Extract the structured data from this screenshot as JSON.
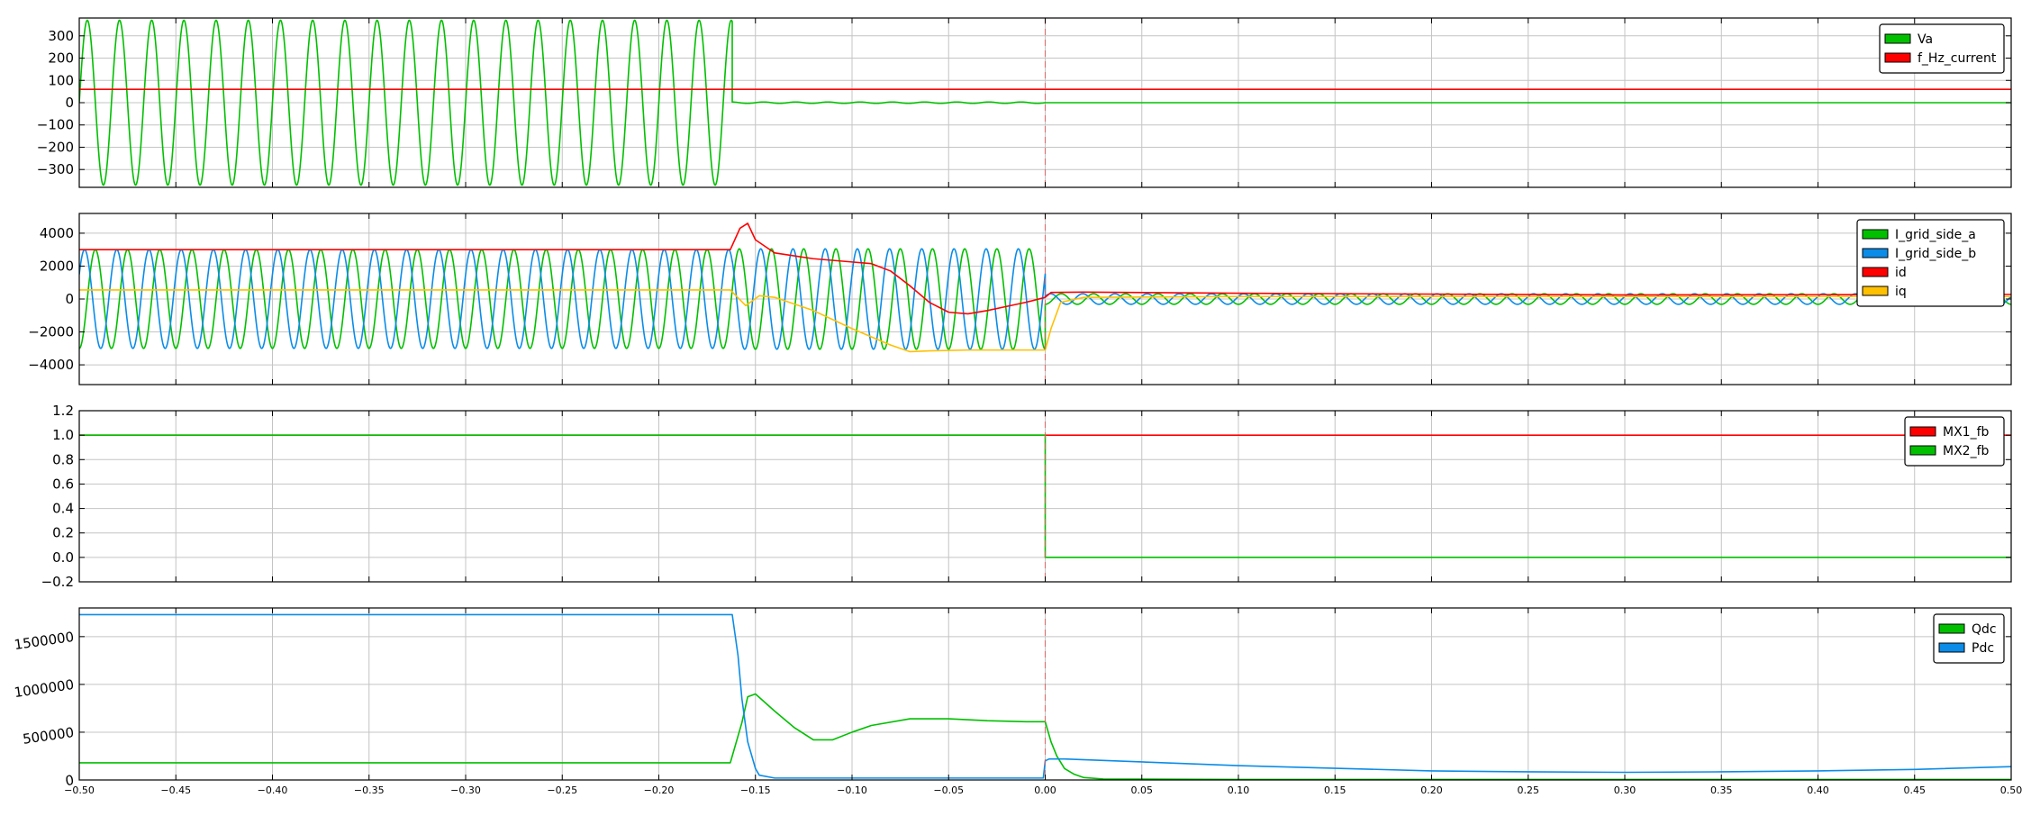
{
  "chart_data": {
    "type": "line",
    "x_axis": {
      "range": [
        -0.5,
        0.5
      ],
      "ticks": [
        -0.5,
        -0.45,
        -0.4,
        -0.35,
        -0.3,
        -0.25,
        -0.2,
        -0.15,
        -0.1,
        -0.05,
        0.0,
        0.05,
        0.1,
        0.15,
        0.2,
        0.25,
        0.3,
        0.35,
        0.4,
        0.45,
        0.5
      ],
      "tick_labels": [
        "−0.50",
        "−0.45",
        "−0.40",
        "−0.35",
        "−0.30",
        "−0.25",
        "−0.20",
        "−0.15",
        "−0.10",
        "−0.05",
        "0.00",
        "0.05",
        "0.10",
        "0.15",
        "0.20",
        "0.25",
        "0.30",
        "0.35",
        "0.40",
        "0.45",
        "0.50"
      ]
    },
    "event_line_x": 0.0,
    "grid": true,
    "legend_placement": "top-right",
    "subplots": [
      {
        "ylim": [
          -380,
          380
        ],
        "yticks": [
          300,
          200,
          100,
          0,
          -100,
          -200,
          -300
        ],
        "ytick_labels": [
          "300",
          "200",
          "100",
          "0",
          "−100",
          "−200",
          "−300"
        ],
        "series": [
          {
            "name": "Va",
            "color": "#00c000",
            "shape": "sine",
            "segments": [
              {
                "x0": -0.5,
                "x1": -0.162,
                "amp": 370,
                "freq": 60,
                "offset": 0
              },
              {
                "x0": -0.162,
                "x1": 0.0,
                "amp": 3,
                "freq": 60,
                "offset": 0
              },
              {
                "x0": 0.0,
                "x1": 0.5,
                "amp": 0,
                "freq": 60,
                "offset": 0
              }
            ]
          },
          {
            "name": "f_Hz_current",
            "color": "#ff0000",
            "shape": "points",
            "x": [
              -0.5,
              0.5
            ],
            "y": [
              60,
              60
            ]
          }
        ]
      },
      {
        "ylim": [
          -5200,
          5200
        ],
        "yticks": [
          4000,
          2000,
          0,
          -2000,
          -4000
        ],
        "ytick_labels": [
          "4000",
          "2000",
          "0",
          "−2000",
          "−4000"
        ],
        "series": [
          {
            "name": "I_grid_side_a",
            "color": "#00c000",
            "shape": "sine",
            "segments": [
              {
                "x0": -0.5,
                "x1": -0.162,
                "amp": 3000,
                "freq": 60,
                "phase": -1.5708
              },
              {
                "x0": -0.162,
                "x1": 0.0,
                "amp": 3050,
                "freq": 60,
                "phase": -1.5708
              },
              {
                "x0": 0.0,
                "x1": 0.5,
                "amp": 320,
                "freq": 60,
                "phase": -1.5708
              }
            ]
          },
          {
            "name": "I_grid_side_b",
            "color": "#0a8ce8",
            "shape": "sine",
            "segments": [
              {
                "x0": -0.5,
                "x1": -0.162,
                "amp": 3000,
                "freq": 60,
                "phase": 0.5236
              },
              {
                "x0": -0.162,
                "x1": 0.0,
                "amp": 3050,
                "freq": 60,
                "phase": 0.5236
              },
              {
                "x0": 0.0,
                "x1": 0.5,
                "amp": 320,
                "freq": 60,
                "phase": 0.5236
              }
            ]
          },
          {
            "name": "id",
            "color": "#ff0000",
            "shape": "points",
            "x": [
              -0.5,
              -0.163,
              -0.158,
              -0.154,
              -0.15,
              -0.14,
              -0.12,
              -0.1,
              -0.09,
              -0.08,
              -0.07,
              -0.06,
              -0.05,
              -0.04,
              -0.03,
              -0.02,
              -0.01,
              0.0,
              0.003,
              0.02,
              0.1,
              0.3,
              0.5
            ],
            "y": [
              3000,
              3000,
              4300,
              4600,
              3600,
              2800,
              2450,
              2250,
              2150,
              1700,
              800,
              -200,
              -800,
              -900,
              -700,
              -450,
              -200,
              100,
              400,
              420,
              350,
              250,
              280
            ]
          },
          {
            "name": "iq",
            "color": "#ffc000",
            "shape": "points",
            "x": [
              -0.5,
              -0.163,
              -0.155,
              -0.148,
              -0.14,
              -0.12,
              -0.1,
              -0.08,
              -0.07,
              -0.06,
              -0.04,
              -0.02,
              0.0,
              0.003,
              0.008,
              0.02,
              0.1,
              0.5
            ],
            "y": [
              550,
              550,
              -400,
              200,
              100,
              -700,
              -1800,
              -2800,
              -3200,
              -3150,
              -3100,
              -3100,
              -3100,
              -1800,
              -200,
              100,
              150,
              150
            ]
          }
        ]
      },
      {
        "ylim": [
          -0.2,
          1.2
        ],
        "yticks": [
          1.2,
          1.0,
          0.8,
          0.6,
          0.4,
          0.2,
          0.0,
          -0.2
        ],
        "ytick_labels": [
          "1.2",
          "1.0",
          "0.8",
          "0.6",
          "0.4",
          "0.2",
          "0.0",
          "−0.2"
        ],
        "series": [
          {
            "name": "MX1_fb",
            "color": "#ff0000",
            "shape": "points",
            "x": [
              -0.5,
              0.0,
              0.0,
              0.5
            ],
            "y": [
              1.0,
              1.0,
              1.0,
              1.0
            ]
          },
          {
            "name": "MX2_fb",
            "color": "#00c000",
            "shape": "points",
            "x": [
              -0.5,
              0.0,
              0.0,
              0.5
            ],
            "y": [
              1.0,
              1.0,
              0.0,
              0.0
            ]
          }
        ]
      },
      {
        "ylim": [
          0,
          1800000
        ],
        "yticks": [
          1500000,
          1000000,
          500000,
          0
        ],
        "ytick_labels": [
          "1500000",
          "1000000",
          "500000",
          "0"
        ],
        "series": [
          {
            "name": "Qdc",
            "color": "#00c000",
            "shape": "points",
            "x": [
              -0.5,
              -0.163,
              -0.157,
              -0.154,
              -0.15,
              -0.14,
              -0.13,
              -0.12,
              -0.11,
              -0.1,
              -0.09,
              -0.07,
              -0.05,
              -0.03,
              -0.01,
              0.0,
              0.003,
              0.006,
              0.01,
              0.015,
              0.02,
              0.03,
              0.1,
              0.5
            ],
            "y": [
              180000,
              180000,
              600000,
              870000,
              900000,
              720000,
              550000,
              420000,
              420000,
              500000,
              570000,
              640000,
              640000,
              620000,
              610000,
              610000,
              400000,
              250000,
              120000,
              60000,
              25000,
              10000,
              5000,
              5000
            ]
          },
          {
            "name": "Pdc",
            "color": "#0a8ce8",
            "shape": "points",
            "x": [
              -0.5,
              -0.162,
              -0.159,
              -0.157,
              -0.154,
              -0.15,
              -0.148,
              -0.14,
              -0.1,
              -0.001,
              0.0,
              0.002,
              0.01,
              0.1,
              0.2,
              0.25,
              0.3,
              0.35,
              0.4,
              0.45,
              0.5
            ],
            "y": [
              1730000,
              1730000,
              1300000,
              850000,
              400000,
              120000,
              50000,
              20000,
              20000,
              20000,
              200000,
              220000,
              220000,
              150000,
              95000,
              85000,
              80000,
              85000,
              95000,
              110000,
              140000
            ]
          }
        ]
      }
    ]
  }
}
